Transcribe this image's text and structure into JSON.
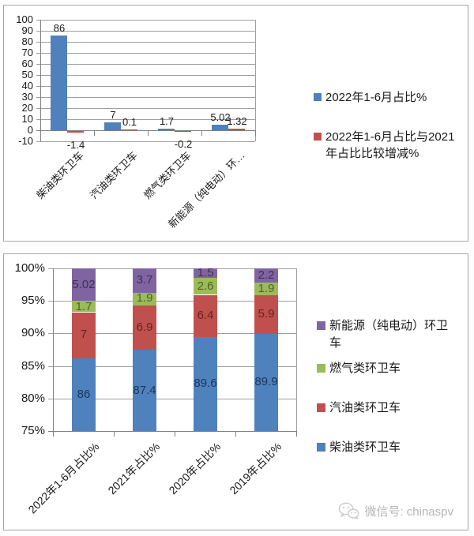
{
  "watermark": {
    "text": "微信号: chinaspv",
    "color": "#b5b5b5",
    "icon": "wechat-icon"
  },
  "colors": {
    "diesel_blue": "#4F81BD",
    "gasoline_red": "#C0504D",
    "gas_green": "#9BBB59",
    "newenergy_purple": "#8064A2",
    "gridline": "#9f9f9f",
    "axis": "#808080",
    "text": "#1a1a1a"
  },
  "chart_data": [
    {
      "type": "bar",
      "title": "",
      "categories": [
        "柴油类环卫车",
        "汽油类环卫车",
        "燃气类环卫车",
        "新能源（纯电动）环…"
      ],
      "series": [
        {
          "name": "2022年1-6月占比%",
          "color": "#4F81BD",
          "values": [
            86,
            7,
            1.7,
            5.02
          ]
        },
        {
          "name": "2022年1-6月占比与2021年占比比较增减%",
          "color": "#C0504D",
          "values": [
            -1.4,
            0.1,
            -0.2,
            1.32
          ]
        }
      ],
      "xlabel": "",
      "ylabel": "",
      "ylim": [
        -10,
        100
      ],
      "yticks": [
        "100",
        "90",
        "80",
        "70",
        "60",
        "50",
        "40",
        "30",
        "20",
        "10",
        "0",
        "-10"
      ],
      "grid": true,
      "legend_position": "right",
      "data_labels": "outside-end"
    },
    {
      "type": "bar",
      "subtype": "stacked-100",
      "title": "",
      "categories": [
        "2022年1-6月占比%",
        "2021年占比%",
        "2020年占比%",
        "2019年占比%"
      ],
      "series": [
        {
          "name": "柴油类环卫车",
          "color": "#4F81BD",
          "label_color": "#17375E",
          "values": [
            86,
            87.4,
            89.6,
            89.9
          ]
        },
        {
          "name": "汽油类环卫车",
          "color": "#C0504D",
          "label_color": "#632423",
          "values": [
            7,
            6.9,
            6.4,
            5.9
          ]
        },
        {
          "name": "燃气类环卫车",
          "color": "#9BBB59",
          "label_color": "#4F6228",
          "values": [
            1.7,
            1.9,
            2.6,
            1.9
          ]
        },
        {
          "name": "新能源（纯电动）环卫车",
          "color": "#8064A2",
          "label_color": "#3F3151",
          "values": [
            5.02,
            3.7,
            1.5,
            2.2
          ]
        }
      ],
      "legend_order": [
        3,
        2,
        1,
        0
      ],
      "xlabel": "",
      "ylabel": "",
      "ylim": [
        75,
        100
      ],
      "yticks": [
        "100%",
        "95%",
        "90%",
        "85%",
        "80%",
        "75%"
      ],
      "grid": true,
      "legend_position": "right",
      "data_labels": "center"
    }
  ]
}
